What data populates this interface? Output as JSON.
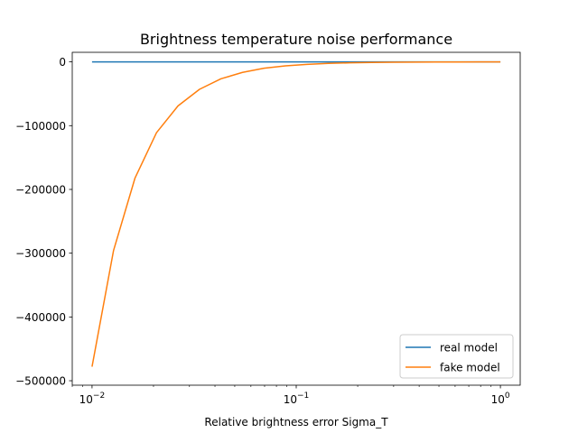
{
  "chart_data": {
    "type": "line",
    "title": "Brightness temperature noise performance",
    "xlabel": "Relative brightness error Sigma_T",
    "ylabel": "",
    "xscale": "log",
    "xlim": [
      0.008,
      1.25
    ],
    "ylim": [
      -507000,
      15000
    ],
    "xticks": [
      {
        "value": 0.01,
        "base": "10",
        "exp": "−2"
      },
      {
        "value": 0.1,
        "base": "10",
        "exp": "−1"
      },
      {
        "value": 1,
        "base": "10",
        "exp": "0"
      }
    ],
    "yticks": [
      {
        "value": 0,
        "label": "0"
      },
      {
        "value": -100000,
        "label": "−100000"
      },
      {
        "value": -200000,
        "label": "−200000"
      },
      {
        "value": -300000,
        "label": "−300000"
      },
      {
        "value": -400000,
        "label": "−400000"
      },
      {
        "value": -500000,
        "label": "−500000"
      }
    ],
    "legend_position": "lower-right",
    "grid": false,
    "x": [
      0.01,
      0.01274,
      0.01624,
      0.02069,
      0.02637,
      0.0336,
      0.04281,
      0.05456,
      0.06952,
      0.08859,
      0.1129,
      0.1438,
      0.1833,
      0.2336,
      0.2976,
      0.3793,
      0.4833,
      0.6158,
      0.7848,
      1.0
    ],
    "series": [
      {
        "name": "real model",
        "color": "#1f77b4",
        "values": [
          0,
          0,
          0,
          0,
          0,
          0,
          0,
          0,
          0,
          0,
          0,
          0,
          0,
          0,
          0,
          0,
          0,
          0,
          0,
          0
        ]
      },
      {
        "name": "fake model",
        "color": "#ff7f0e",
        "values": [
          -478000,
          -296000,
          -182000,
          -111000,
          -69000,
          -43000,
          -26500,
          -16500,
          -10000,
          -6200,
          -3900,
          -2400,
          -1500,
          -900,
          -560,
          -350,
          -220,
          -130,
          -80,
          -50
        ]
      }
    ]
  }
}
